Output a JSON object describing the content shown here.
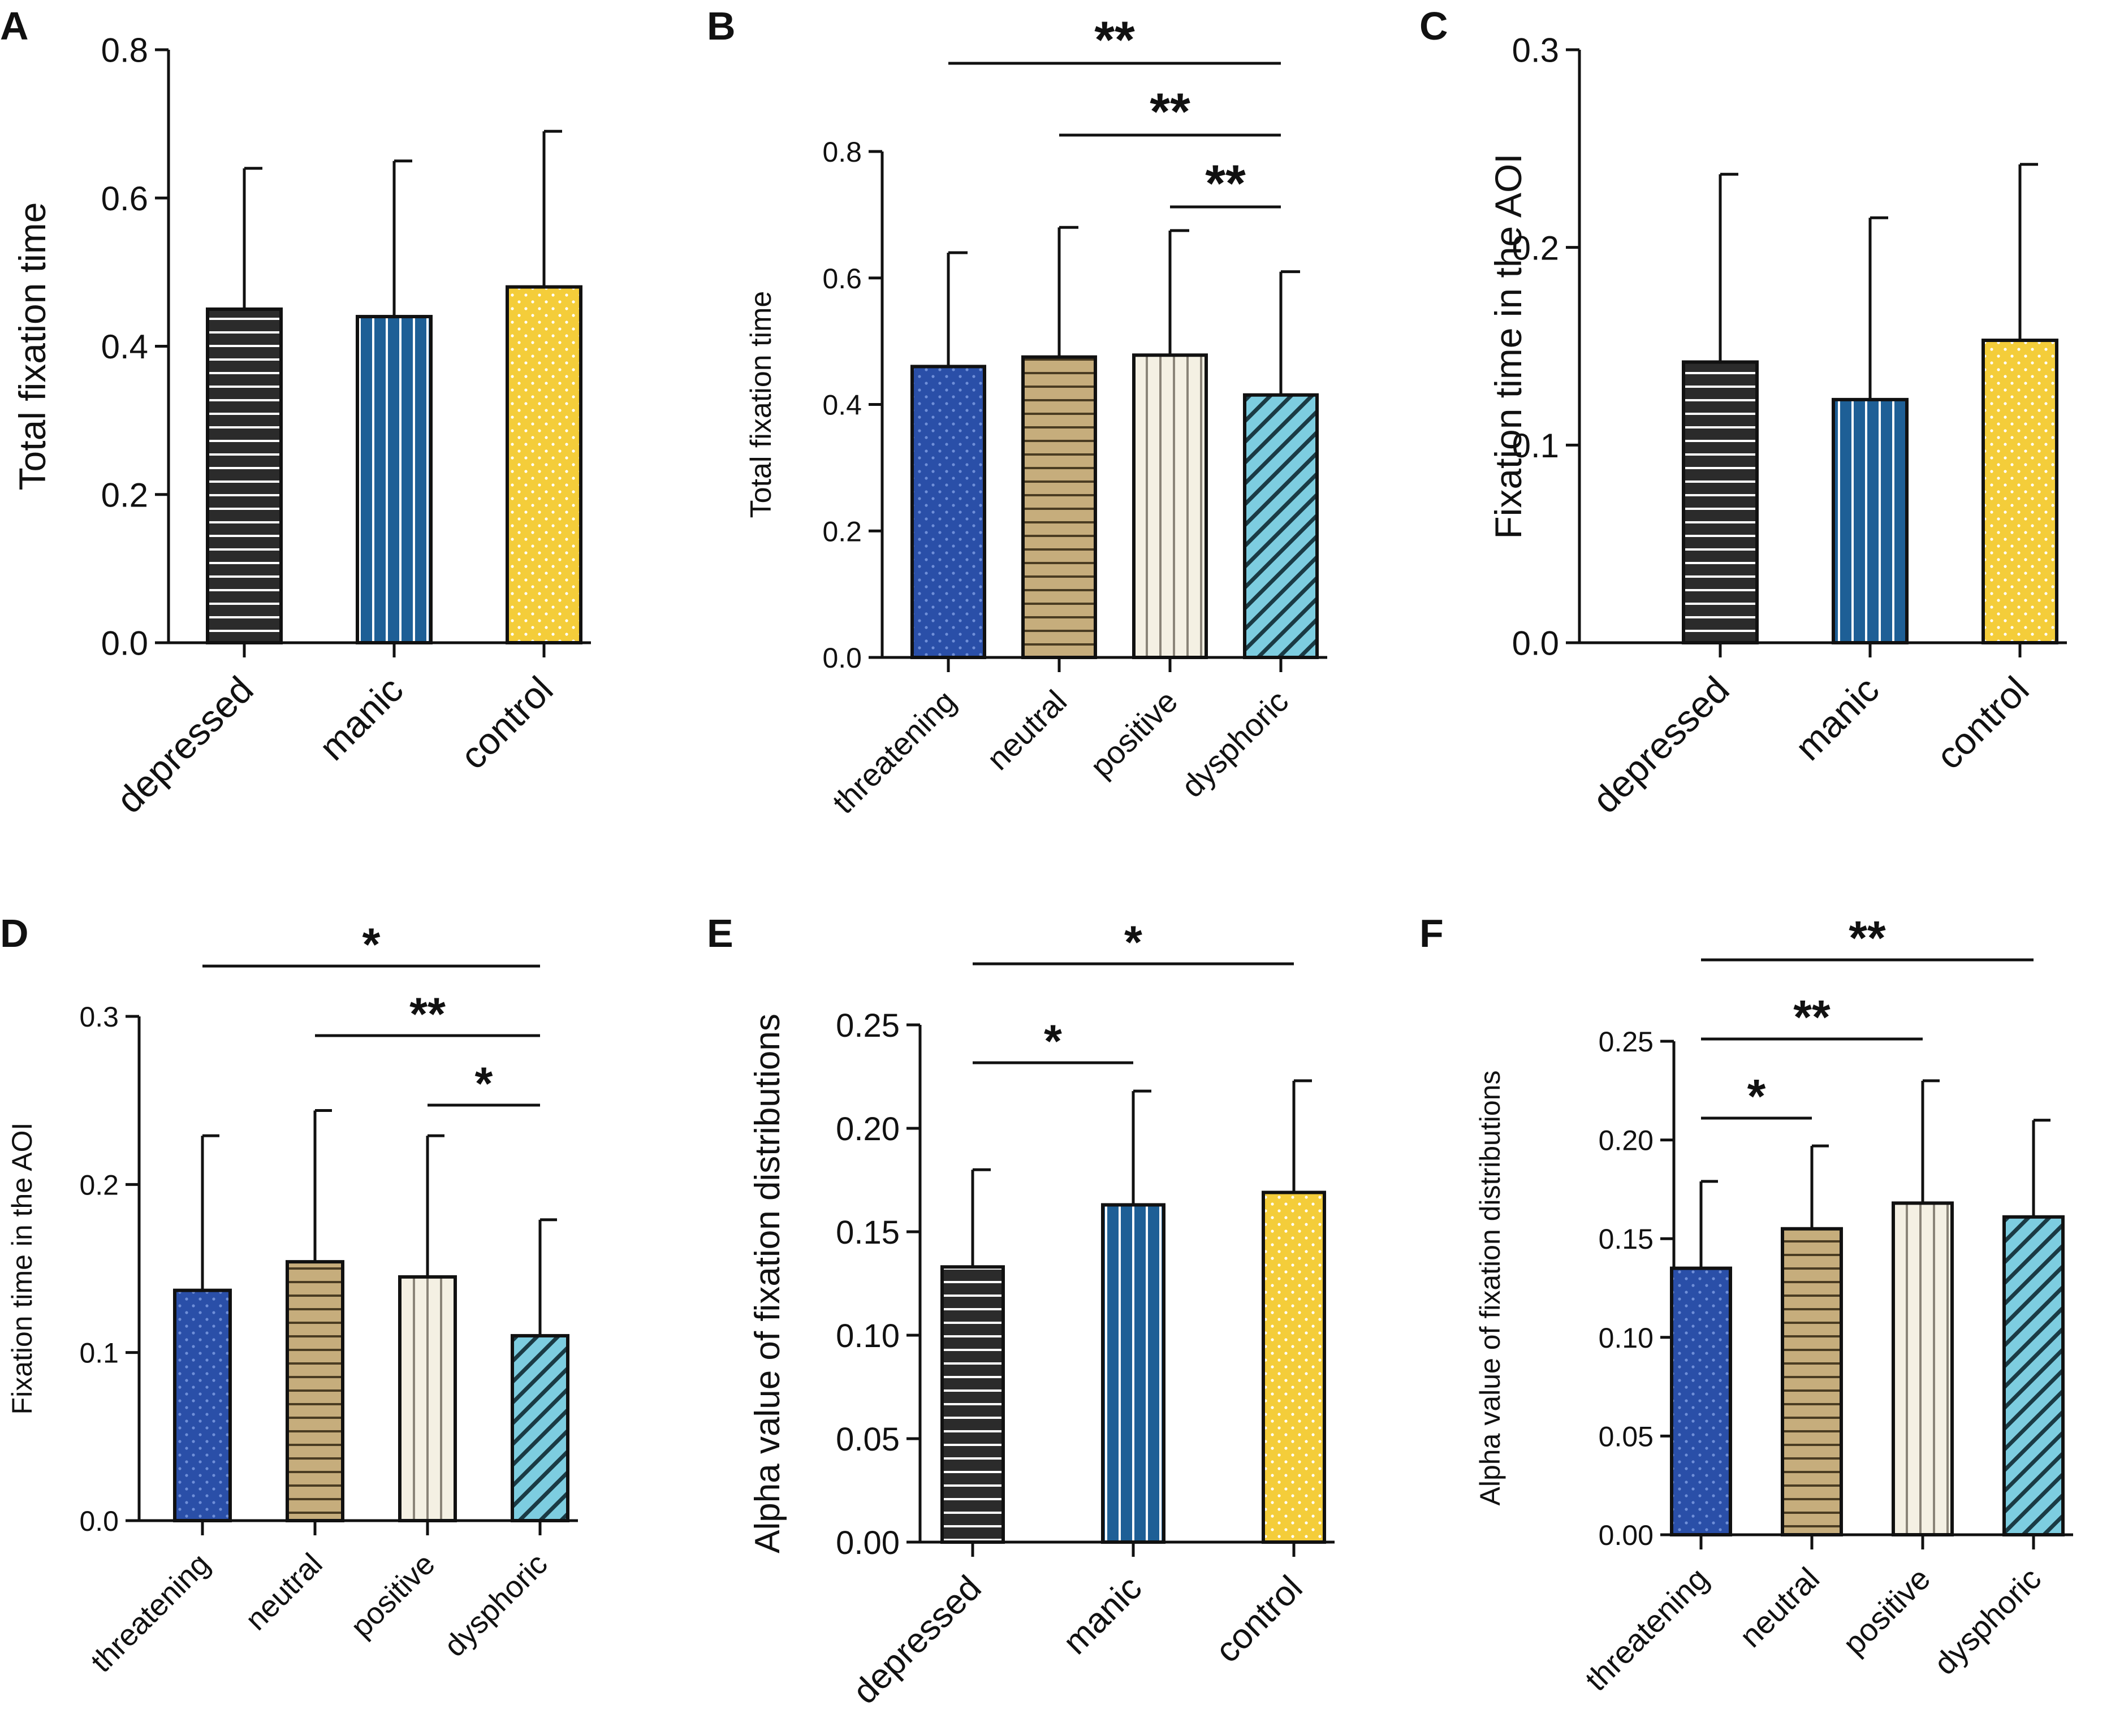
{
  "figure": {
    "patterns": {
      "group_hstripe": {
        "fill": "#2b2b2b",
        "line": "#ffffff"
      },
      "group_vstripe": {
        "fill": "#1e5f96",
        "line": "#ffffff"
      },
      "group_dot": {
        "fill": "#f4cd3a",
        "dot": "#ffffff"
      },
      "blue_dot": {
        "fill": "#2a4fa8",
        "dot": "#6f8fd8"
      },
      "tan_hstripe": {
        "fill": "#c6ad7c",
        "line": "#4a3c22"
      },
      "cream_vstripe": {
        "fill": "#f4f0e3",
        "line": "#8a8478"
      },
      "teal_diag": {
        "fill": "#7dcde0",
        "line": "#1a3a44"
      }
    }
  },
  "chart_data": [
    {
      "panel": "A",
      "type": "bar",
      "ylabel": "Total fixation time",
      "categories": [
        "depressed",
        "manic",
        "control"
      ],
      "patterns": [
        "group_hstripe",
        "group_vstripe",
        "group_dot"
      ],
      "values": [
        0.45,
        0.44,
        0.48
      ],
      "errors": [
        0.19,
        0.21,
        0.21
      ],
      "ylim": [
        0,
        0.8
      ],
      "yticks": [
        "0.0",
        "0.2",
        "0.4",
        "0.6",
        "0.8"
      ],
      "significance": []
    },
    {
      "panel": "B",
      "type": "bar",
      "ylabel": "Total fixation time",
      "categories": [
        "threatening",
        "neutral",
        "positive",
        "dysphoric"
      ],
      "patterns": [
        "blue_dot",
        "tan_hstripe",
        "cream_vstripe",
        "teal_diag"
      ],
      "values": [
        0.46,
        0.475,
        0.478,
        0.415
      ],
      "errors": [
        0.18,
        0.205,
        0.197,
        0.195
      ],
      "ylim": [
        0,
        0.8
      ],
      "yticks": [
        "0.0",
        "0.2",
        "0.4",
        "0.6",
        "0.8"
      ],
      "significance": [
        {
          "from": 0,
          "to": 3,
          "label": "**",
          "level": 2
        },
        {
          "from": 1,
          "to": 3,
          "label": "**",
          "level": 1
        },
        {
          "from": 2,
          "to": 3,
          "label": "**",
          "level": 0
        }
      ]
    },
    {
      "panel": "C",
      "type": "bar",
      "ylabel": "Fixation time in the AOI",
      "categories": [
        "depressed",
        "manic",
        "control"
      ],
      "patterns": [
        "group_hstripe",
        "group_vstripe",
        "group_dot"
      ],
      "values": [
        0.142,
        0.123,
        0.153
      ],
      "errors": [
        0.095,
        0.092,
        0.089
      ],
      "ylim": [
        0,
        0.3
      ],
      "yticks": [
        "0.0",
        "0.1",
        "0.2",
        "0.3"
      ],
      "significance": []
    },
    {
      "panel": "D",
      "type": "bar",
      "ylabel": "Fixation time in the AOI",
      "categories": [
        "threatening",
        "neutral",
        "positive",
        "dysphoric"
      ],
      "patterns": [
        "blue_dot",
        "tan_hstripe",
        "cream_vstripe",
        "teal_diag"
      ],
      "values": [
        0.137,
        0.154,
        0.145,
        0.11
      ],
      "errors": [
        0.092,
        0.09,
        0.084,
        0.069
      ],
      "ylim": [
        0,
        0.3
      ],
      "yticks": [
        "0.0",
        "0.1",
        "0.2",
        "0.3"
      ],
      "significance": [
        {
          "from": 0,
          "to": 3,
          "label": "*",
          "level": 2
        },
        {
          "from": 1,
          "to": 3,
          "label": "**",
          "level": 1
        },
        {
          "from": 2,
          "to": 3,
          "label": "*",
          "level": 0
        }
      ]
    },
    {
      "panel": "E",
      "type": "bar",
      "ylabel": "Alpha value of fixation distributions",
      "categories": [
        "depressed",
        "manic",
        "control"
      ],
      "patterns": [
        "group_hstripe",
        "group_vstripe",
        "group_dot"
      ],
      "values": [
        0.133,
        0.163,
        0.169
      ],
      "errors": [
        0.047,
        0.055,
        0.054
      ],
      "ylim": [
        0,
        0.25
      ],
      "yticks": [
        "0.00",
        "0.05",
        "0.10",
        "0.15",
        "0.20",
        "0.25"
      ],
      "significance": [
        {
          "from": 0,
          "to": 2,
          "label": "*",
          "level": 1
        },
        {
          "from": 0,
          "to": 1,
          "label": "*",
          "level": 0
        }
      ]
    },
    {
      "panel": "F",
      "type": "bar",
      "ylabel": "Alpha value of fixation distributions",
      "categories": [
        "threatening",
        "neutral",
        "positive",
        "dysphoric"
      ],
      "patterns": [
        "blue_dot",
        "tan_hstripe",
        "cream_vstripe",
        "teal_diag"
      ],
      "values": [
        0.135,
        0.155,
        0.168,
        0.161
      ],
      "errors": [
        0.044,
        0.042,
        0.062,
        0.049
      ],
      "ylim": [
        0,
        0.25
      ],
      "yticks": [
        "0.00",
        "0.05",
        "0.10",
        "0.15",
        "0.20",
        "0.25"
      ],
      "significance": [
        {
          "from": 0,
          "to": 3,
          "label": "**",
          "level": 2
        },
        {
          "from": 0,
          "to": 2,
          "label": "**",
          "level": 1
        },
        {
          "from": 0,
          "to": 1,
          "label": "*",
          "level": 0
        }
      ]
    }
  ]
}
